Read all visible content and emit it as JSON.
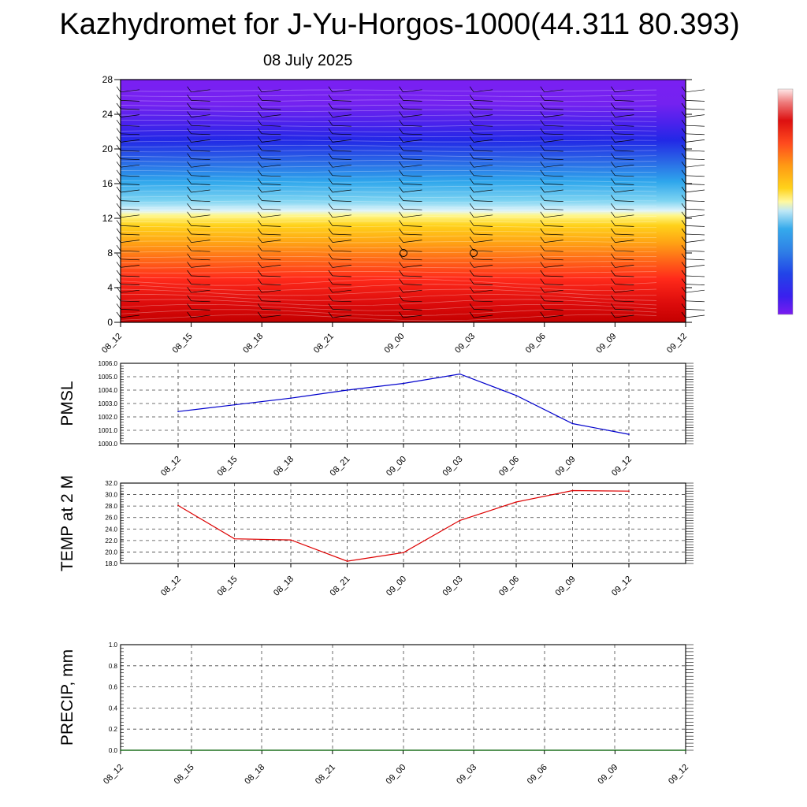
{
  "title": "Kazhydromet for J-Yu-Horgos-1000(44.311 80.393)",
  "date": "08 July 2025",
  "time_labels": [
    "08_12",
    "08_15",
    "08_18",
    "08_21",
    "09_00",
    "09_03",
    "09_06",
    "09_09",
    "09_12"
  ],
  "colors": {
    "pmsl_line": "#0000cc",
    "temp_line": "#dd0000",
    "precip_line": "#006400",
    "colorbar": [
      "#7a1cf0",
      "#3320ee",
      "#2244e8",
      "#2f7fe6",
      "#35aaec",
      "#8fd8f2",
      "#ffffff",
      "#fff35a",
      "#ffd21a",
      "#ffae12",
      "#ff7a18",
      "#ff3a20",
      "#e81a1a",
      "#cc0000",
      "#ee7a7a",
      "#ffe2e2"
    ]
  },
  "chart_data": [
    {
      "type": "heatmap",
      "description_kind": "time-height",
      "x": [
        "08_12",
        "08_15",
        "08_18",
        "08_21",
        "09_00",
        "09_03",
        "09_06",
        "09_09",
        "09_12"
      ],
      "ylim": [
        0,
        28
      ],
      "yticks": [
        "0",
        "4",
        "8",
        "12",
        "16",
        "20",
        "24",
        "28"
      ],
      "grid": false
    },
    {
      "type": "line",
      "ylabel": "PMSL",
      "categories": [
        "08_12",
        "08_15",
        "08_18",
        "08_21",
        "09_00",
        "09_03",
        "09_06",
        "09_09",
        "09_12"
      ],
      "values": [
        1002.4,
        1002.9,
        1003.4,
        1004.0,
        1004.5,
        1005.2,
        1003.6,
        1001.5,
        1000.7
      ],
      "ylim": [
        1000.0,
        1006.0
      ],
      "yticks": [
        "1000.0",
        "1001.0",
        "1002.0",
        "1003.0",
        "1004.0",
        "1005.0",
        "1006.0"
      ],
      "grid": true
    },
    {
      "type": "line",
      "ylabel": "TEMP at 2 M",
      "categories": [
        "08_12",
        "08_15",
        "08_18",
        "08_21",
        "09_00",
        "09_03",
        "09_06",
        "09_09",
        "09_12"
      ],
      "values": [
        28.1,
        22.3,
        22.1,
        18.4,
        19.9,
        25.5,
        28.7,
        30.7,
        30.6
      ],
      "ylim": [
        18.0,
        32.0
      ],
      "yticks": [
        "18.0",
        "20.0",
        "22.0",
        "24.0",
        "26.0",
        "28.0",
        "30.0",
        "32.0"
      ],
      "grid": true
    },
    {
      "type": "line",
      "ylabel": "PRECIP, mm",
      "categories": [
        "08_12",
        "08_15",
        "08_18",
        "08_21",
        "09_00",
        "09_03",
        "09_06",
        "09_09",
        "09_12"
      ],
      "values": [
        0,
        0,
        0,
        0,
        0,
        0,
        0,
        0,
        0
      ],
      "ylim": [
        0.0,
        1.0
      ],
      "yticks": [
        "0.0",
        "0.2",
        "0.4",
        "0.6",
        "0.8",
        "1.0"
      ],
      "grid": true
    }
  ]
}
